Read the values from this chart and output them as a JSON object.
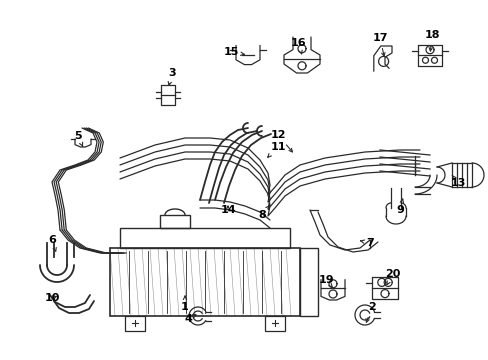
{
  "background_color": "#ffffff",
  "line_color": "#2a2a2a",
  "text_color": "#000000",
  "lw_main": 1.3,
  "lw_thin": 0.9,
  "font_size": 8.0
}
